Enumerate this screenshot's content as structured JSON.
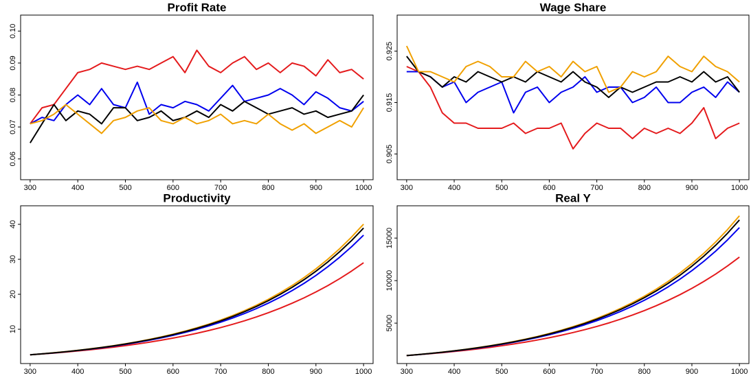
{
  "chart_data": [
    {
      "type": "line",
      "title": "Profit Rate",
      "x": [
        300,
        325,
        350,
        375,
        400,
        425,
        450,
        475,
        500,
        525,
        550,
        575,
        600,
        625,
        650,
        675,
        700,
        725,
        750,
        775,
        800,
        825,
        850,
        875,
        900,
        925,
        950,
        975,
        1000
      ],
      "xlim": [
        280,
        1020
      ],
      "xticks": [
        300,
        400,
        500,
        600,
        700,
        800,
        900,
        1000
      ],
      "ylim": [
        0.0535,
        0.105
      ],
      "yticks": [
        0.06,
        0.07,
        0.08,
        0.09,
        {
          "value": 0.1,
          "label": "0.10"
        }
      ],
      "series": [
        {
          "color": "#e41a1c",
          "values": [
            0.071,
            0.076,
            0.077,
            0.082,
            0.087,
            0.088,
            0.09,
            0.089,
            0.088,
            0.089,
            0.088,
            0.09,
            0.092,
            0.087,
            0.094,
            0.089,
            0.087,
            0.09,
            0.092,
            0.088,
            0.09,
            0.087,
            0.09,
            0.089,
            0.086,
            0.091,
            0.087,
            0.088,
            0.085
          ]
        },
        {
          "color": "#0000ee",
          "values": [
            0.071,
            0.073,
            0.072,
            0.077,
            0.08,
            0.077,
            0.082,
            0.077,
            0.076,
            0.084,
            0.074,
            0.077,
            0.076,
            0.078,
            0.077,
            0.075,
            0.079,
            0.083,
            0.078,
            0.079,
            0.08,
            0.082,
            0.08,
            0.077,
            0.081,
            0.079,
            0.076,
            0.075,
            0.078
          ]
        },
        {
          "color": "#000000",
          "values": [
            0.065,
            0.071,
            0.077,
            0.072,
            0.075,
            0.074,
            0.071,
            0.076,
            0.076,
            0.072,
            0.073,
            0.075,
            0.072,
            0.073,
            0.075,
            0.073,
            0.077,
            0.075,
            0.078,
            0.076,
            0.074,
            0.075,
            0.076,
            0.074,
            0.075,
            0.073,
            0.074,
            0.075,
            0.08
          ]
        },
        {
          "color": "#f0a000",
          "values": [
            0.071,
            0.072,
            0.074,
            0.077,
            0.074,
            0.071,
            0.068,
            0.072,
            0.073,
            0.075,
            0.076,
            0.072,
            0.071,
            0.073,
            0.071,
            0.072,
            0.074,
            0.071,
            0.072,
            0.071,
            0.074,
            0.071,
            0.069,
            0.071,
            0.068,
            0.07,
            0.072,
            0.07,
            0.076
          ]
        }
      ]
    },
    {
      "type": "line",
      "title": "Wage Share",
      "x": [
        300,
        325,
        350,
        375,
        400,
        425,
        450,
        475,
        500,
        525,
        550,
        575,
        600,
        625,
        650,
        675,
        700,
        725,
        750,
        775,
        800,
        825,
        850,
        875,
        900,
        925,
        950,
        975,
        1000
      ],
      "xlim": [
        280,
        1020
      ],
      "xticks": [
        300,
        400,
        500,
        600,
        700,
        800,
        900,
        1000
      ],
      "ylim": [
        0.9,
        0.932
      ],
      "yticks": [
        0.905,
        0.915,
        0.925
      ],
      "series": [
        {
          "color": "#e41a1c",
          "values": [
            0.922,
            0.921,
            0.918,
            0.913,
            0.911,
            0.911,
            0.91,
            0.91,
            0.91,
            0.911,
            0.909,
            0.91,
            0.91,
            0.911,
            0.906,
            0.909,
            0.911,
            0.91,
            0.91,
            0.908,
            0.91,
            0.909,
            0.91,
            0.909,
            0.911,
            0.914,
            0.908,
            0.91,
            0.911
          ]
        },
        {
          "color": "#0000ee",
          "values": [
            0.921,
            0.921,
            0.92,
            0.918,
            0.919,
            0.915,
            0.917,
            0.918,
            0.919,
            0.913,
            0.917,
            0.918,
            0.915,
            0.917,
            0.918,
            0.92,
            0.917,
            0.918,
            0.918,
            0.915,
            0.916,
            0.918,
            0.915,
            0.915,
            0.917,
            0.918,
            0.916,
            0.919,
            0.917
          ]
        },
        {
          "color": "#000000",
          "values": [
            0.924,
            0.921,
            0.92,
            0.918,
            0.92,
            0.919,
            0.921,
            0.92,
            0.919,
            0.92,
            0.919,
            0.921,
            0.92,
            0.919,
            0.921,
            0.919,
            0.918,
            0.916,
            0.918,
            0.917,
            0.918,
            0.919,
            0.919,
            0.92,
            0.919,
            0.921,
            0.919,
            0.92,
            0.917
          ]
        },
        {
          "color": "#f0a000",
          "values": [
            0.926,
            0.921,
            0.921,
            0.92,
            0.919,
            0.922,
            0.923,
            0.922,
            0.92,
            0.92,
            0.923,
            0.921,
            0.922,
            0.92,
            0.923,
            0.921,
            0.922,
            0.917,
            0.918,
            0.921,
            0.92,
            0.921,
            0.924,
            0.922,
            0.921,
            0.924,
            0.922,
            0.921,
            0.919
          ]
        }
      ]
    },
    {
      "type": "line",
      "title": "Productivity",
      "x": [
        300,
        325,
        350,
        375,
        400,
        425,
        450,
        475,
        500,
        525,
        550,
        575,
        600,
        625,
        650,
        675,
        700,
        725,
        750,
        775,
        800,
        825,
        850,
        875,
        900,
        925,
        950,
        975,
        1000
      ],
      "xlim": [
        280,
        1020
      ],
      "xticks": [
        300,
        400,
        500,
        600,
        700,
        800,
        900,
        1000
      ],
      "ylim": [
        0.2,
        45.3
      ],
      "yticks": [
        10,
        20,
        30,
        40
      ],
      "series": [
        {
          "color": "#e41a1c",
          "values": [
            2.7,
            2.94,
            3.2,
            3.48,
            3.79,
            4.12,
            4.49,
            4.88,
            5.32,
            5.79,
            6.3,
            6.86,
            7.47,
            8.13,
            8.85,
            9.63,
            10.48,
            11.41,
            12.42,
            13.52,
            14.72,
            16.02,
            17.44,
            18.98,
            20.66,
            22.49,
            24.48,
            26.65,
            29.01
          ]
        },
        {
          "color": "#0000ee",
          "values": [
            2.7,
            2.96,
            3.25,
            3.57,
            3.92,
            4.3,
            4.72,
            5.18,
            5.69,
            6.25,
            6.86,
            7.53,
            8.27,
            9.08,
            9.97,
            10.95,
            12.02,
            13.2,
            14.49,
            15.91,
            17.47,
            19.18,
            21.06,
            23.12,
            25.39,
            27.88,
            30.61,
            33.61,
            36.9
          ]
        },
        {
          "color": "#f0a000",
          "values": [
            2.7,
            2.97,
            3.28,
            3.61,
            3.97,
            4.38,
            4.82,
            5.31,
            5.85,
            6.44,
            7.09,
            7.8,
            8.59,
            9.46,
            10.42,
            11.47,
            12.63,
            13.91,
            15.31,
            16.86,
            18.56,
            20.44,
            22.5,
            24.77,
            27.27,
            30.02,
            33.05,
            36.38,
            40.05
          ]
        },
        {
          "color": "#000000",
          "values": [
            2.7,
            2.97,
            3.27,
            3.59,
            3.95,
            4.35,
            4.78,
            5.26,
            5.79,
            6.37,
            7.0,
            7.7,
            8.47,
            9.32,
            10.25,
            11.28,
            12.4,
            13.65,
            15.01,
            16.51,
            18.16,
            19.98,
            21.98,
            24.17,
            26.59,
            29.25,
            32.18,
            35.39,
            38.93
          ]
        }
      ]
    },
    {
      "type": "line",
      "title": "Real Y",
      "x": [
        300,
        325,
        350,
        375,
        400,
        425,
        450,
        475,
        500,
        525,
        550,
        575,
        600,
        625,
        650,
        675,
        700,
        725,
        750,
        775,
        800,
        825,
        850,
        875,
        900,
        925,
        950,
        975,
        1000
      ],
      "xlim": [
        280,
        1020
      ],
      "xticks": [
        300,
        400,
        500,
        600,
        700,
        800,
        900,
        1000
      ],
      "ylim": [
        250,
        18800
      ],
      "yticks": [
        5000,
        10000,
        15000
      ],
      "series": [
        {
          "color": "#e41a1c",
          "values": [
            1188,
            1294,
            1408,
            1531,
            1668,
            1813,
            1976,
            2147,
            2341,
            2548,
            2772,
            3018,
            3287,
            3577,
            3894,
            4237,
            4611,
            5020,
            5465,
            5949,
            6477,
            7049,
            7674,
            8351,
            9090,
            9896,
            10771,
            11726,
            12764
          ]
        },
        {
          "color": "#0000ee",
          "values": [
            1188,
            1302,
            1430,
            1571,
            1725,
            1892,
            2077,
            2279,
            2504,
            2750,
            3018,
            3313,
            3639,
            3995,
            4387,
            4818,
            5289,
            5808,
            6376,
            7000,
            7687,
            8439,
            9266,
            10173,
            11172,
            12267,
            13468,
            14788,
            16236
          ]
        },
        {
          "color": "#f0a000",
          "values": [
            1188,
            1307,
            1443,
            1588,
            1747,
            1927,
            2121,
            2336,
            2574,
            2834,
            3120,
            3432,
            3780,
            4162,
            4585,
            5047,
            5557,
            6120,
            6736,
            7418,
            8166,
            8994,
            9900,
            10899,
            11999,
            13209,
            14542,
            16007,
            17622
          ]
        },
        {
          "color": "#000000",
          "values": [
            1188,
            1307,
            1439,
            1580,
            1738,
            1914,
            2103,
            2314,
            2548,
            2803,
            3080,
            3388,
            3727,
            4101,
            4510,
            4963,
            5456,
            6006,
            6604,
            7264,
            7990,
            8791,
            9671,
            10635,
            11700,
            12870,
            14159,
            15572,
            17129
          ]
        }
      ]
    }
  ]
}
